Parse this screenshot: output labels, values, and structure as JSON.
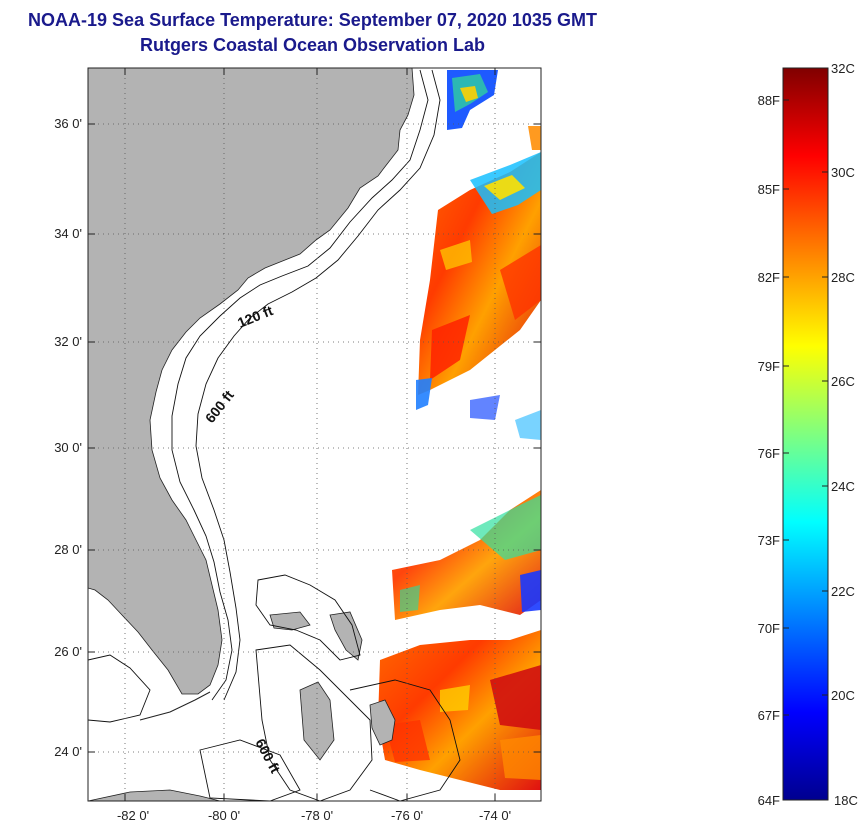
{
  "header": {
    "title_line1": "NOAA-19 Sea Surface Temperature:  September 07, 2020 1035 GMT",
    "title_line2": "Rutgers Coastal Ocean Observation Lab"
  },
  "map": {
    "lon_range": [
      -83,
      -73
    ],
    "lat_range": [
      23,
      37
    ],
    "lat_ticks": [
      "24 0'",
      "26 0'",
      "28 0'",
      "30 0'",
      "32 0'",
      "34 0'",
      "36 0'"
    ],
    "lon_ticks": [
      "-82 0'",
      "-80 0'",
      "-78 0'",
      "-76 0'",
      "-74 0'"
    ],
    "contour_labels": [
      "120 ft",
      "600 ft",
      "600 ft"
    ],
    "land_color": "#b3b3b3",
    "cloud_color": "#ffffff",
    "gridlines": "dotted"
  },
  "colorbar": {
    "celsius_range": [
      18,
      32
    ],
    "fahrenheit_range": [
      64,
      90
    ],
    "celsius_labels": [
      "32C",
      "30C",
      "28C",
      "26C",
      "24C",
      "22C",
      "20C",
      "18C"
    ],
    "fahrenheit_labels": [
      "88F",
      "85F",
      "82F",
      "79F",
      "76F",
      "73F",
      "70F",
      "67F",
      "64F"
    ],
    "colormap": "jet"
  }
}
